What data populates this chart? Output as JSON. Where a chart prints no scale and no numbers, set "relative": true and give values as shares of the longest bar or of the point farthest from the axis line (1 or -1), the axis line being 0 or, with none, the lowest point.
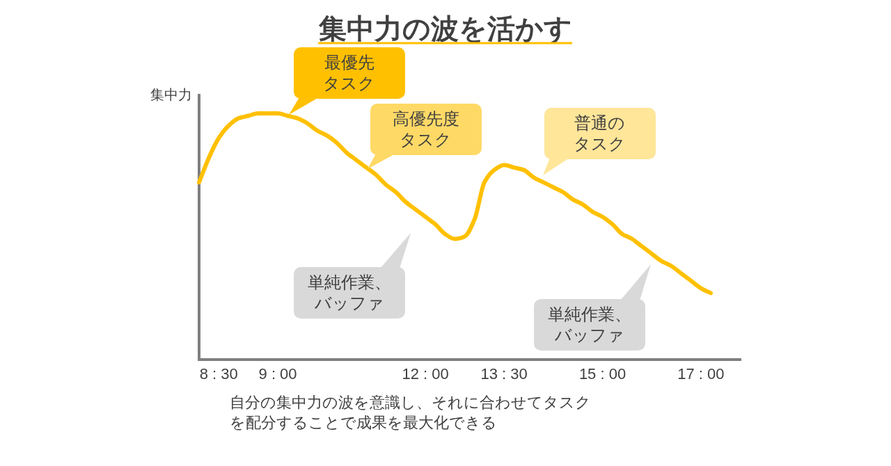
{
  "chart_data": {
    "type": "line",
    "title": "集中力の波を活かす",
    "ylabel": "集中力",
    "relative": true,
    "line_style": "solid",
    "categories": [
      null,
      null,
      "8 : 30",
      null,
      null,
      null,
      null,
      null,
      "9 : 00",
      null,
      null,
      null,
      null,
      null,
      null,
      null,
      null,
      null,
      null,
      null,
      null,
      null,
      null,
      "12 : 00",
      null,
      null,
      null,
      null,
      null,
      null,
      null,
      "13 : 30",
      null,
      null,
      null,
      null,
      null,
      null,
      null,
      null,
      null,
      "15 : 00",
      null,
      null,
      null,
      null,
      null,
      null,
      null,
      null,
      null,
      "17 : 00",
      null
    ],
    "series": [
      {
        "color": "#ffc000",
        "values": [
          0.72,
          0.82,
          0.9,
          0.95,
          0.98,
          0.99,
          1.0,
          1.0,
          1.0,
          0.99,
          0.98,
          0.96,
          0.93,
          0.91,
          0.88,
          0.84,
          0.81,
          0.78,
          0.75,
          0.71,
          0.68,
          0.64,
          0.61,
          0.58,
          0.55,
          0.51,
          0.49,
          0.5,
          0.57,
          0.72,
          0.77,
          0.79,
          0.78,
          0.77,
          0.74,
          0.72,
          0.7,
          0.68,
          0.65,
          0.63,
          0.6,
          0.58,
          0.55,
          0.51,
          0.49,
          0.46,
          0.43,
          0.4,
          0.38,
          0.35,
          0.32,
          0.29,
          0.27
        ]
      }
    ],
    "annotations": [
      "最優先タスク",
      "高優先度タスク",
      "普通のタスク",
      "単純作業、バッファ",
      "単純作業、バッファ",
      "自分の集中力の波を意識し、それに合わせてタスクを配分することで成果を最大化できる"
    ]
  }
}
